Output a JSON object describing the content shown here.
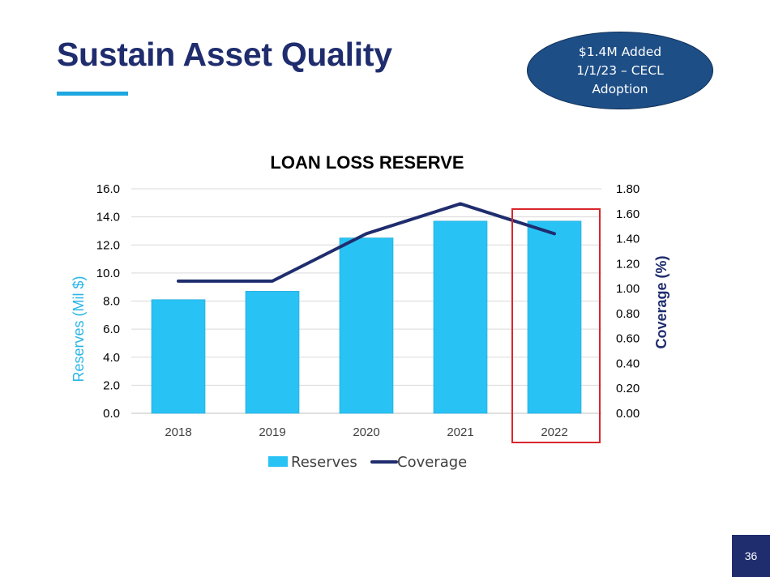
{
  "slide": {
    "title": "Sustain Asset Quality",
    "page_number": "36",
    "callout_text": "$1.4M Added 1/1/23 – CECL Adoption"
  },
  "colors": {
    "title": "#1f2d6e",
    "accent_rule": "#1ea7e1",
    "bar_fill": "#29c2f5",
    "line": "#1f2d6e",
    "highlight_box": "#d9262c",
    "callout_fill": "#1d4e86"
  },
  "chart_data": {
    "type": "bar",
    "title": "LOAN LOSS RESERVE",
    "categories": [
      "2018",
      "2019",
      "2020",
      "2021",
      "2022"
    ],
    "series": [
      {
        "name": "Reserves",
        "type": "bar",
        "axis": "left",
        "values": [
          8.1,
          8.7,
          12.5,
          13.7,
          13.7
        ]
      },
      {
        "name": "Coverage",
        "type": "line",
        "axis": "right",
        "values": [
          1.06,
          1.06,
          1.44,
          1.68,
          1.44
        ]
      }
    ],
    "ylabel": "Reserves (Mil $)",
    "ylim": [
      0,
      16
    ],
    "y_ticks": [
      "0.0",
      "2.0",
      "4.0",
      "6.0",
      "8.0",
      "10.0",
      "12.0",
      "14.0",
      "16.0"
    ],
    "y2label": "Coverage (%)",
    "y2lim": [
      0,
      1.8
    ],
    "y2_ticks": [
      "0.00",
      "0.20",
      "0.40",
      "0.60",
      "0.80",
      "1.00",
      "1.20",
      "1.40",
      "1.60",
      "1.80"
    ],
    "grid": true,
    "legend": "bottom-center",
    "highlighted_category": "2022"
  }
}
